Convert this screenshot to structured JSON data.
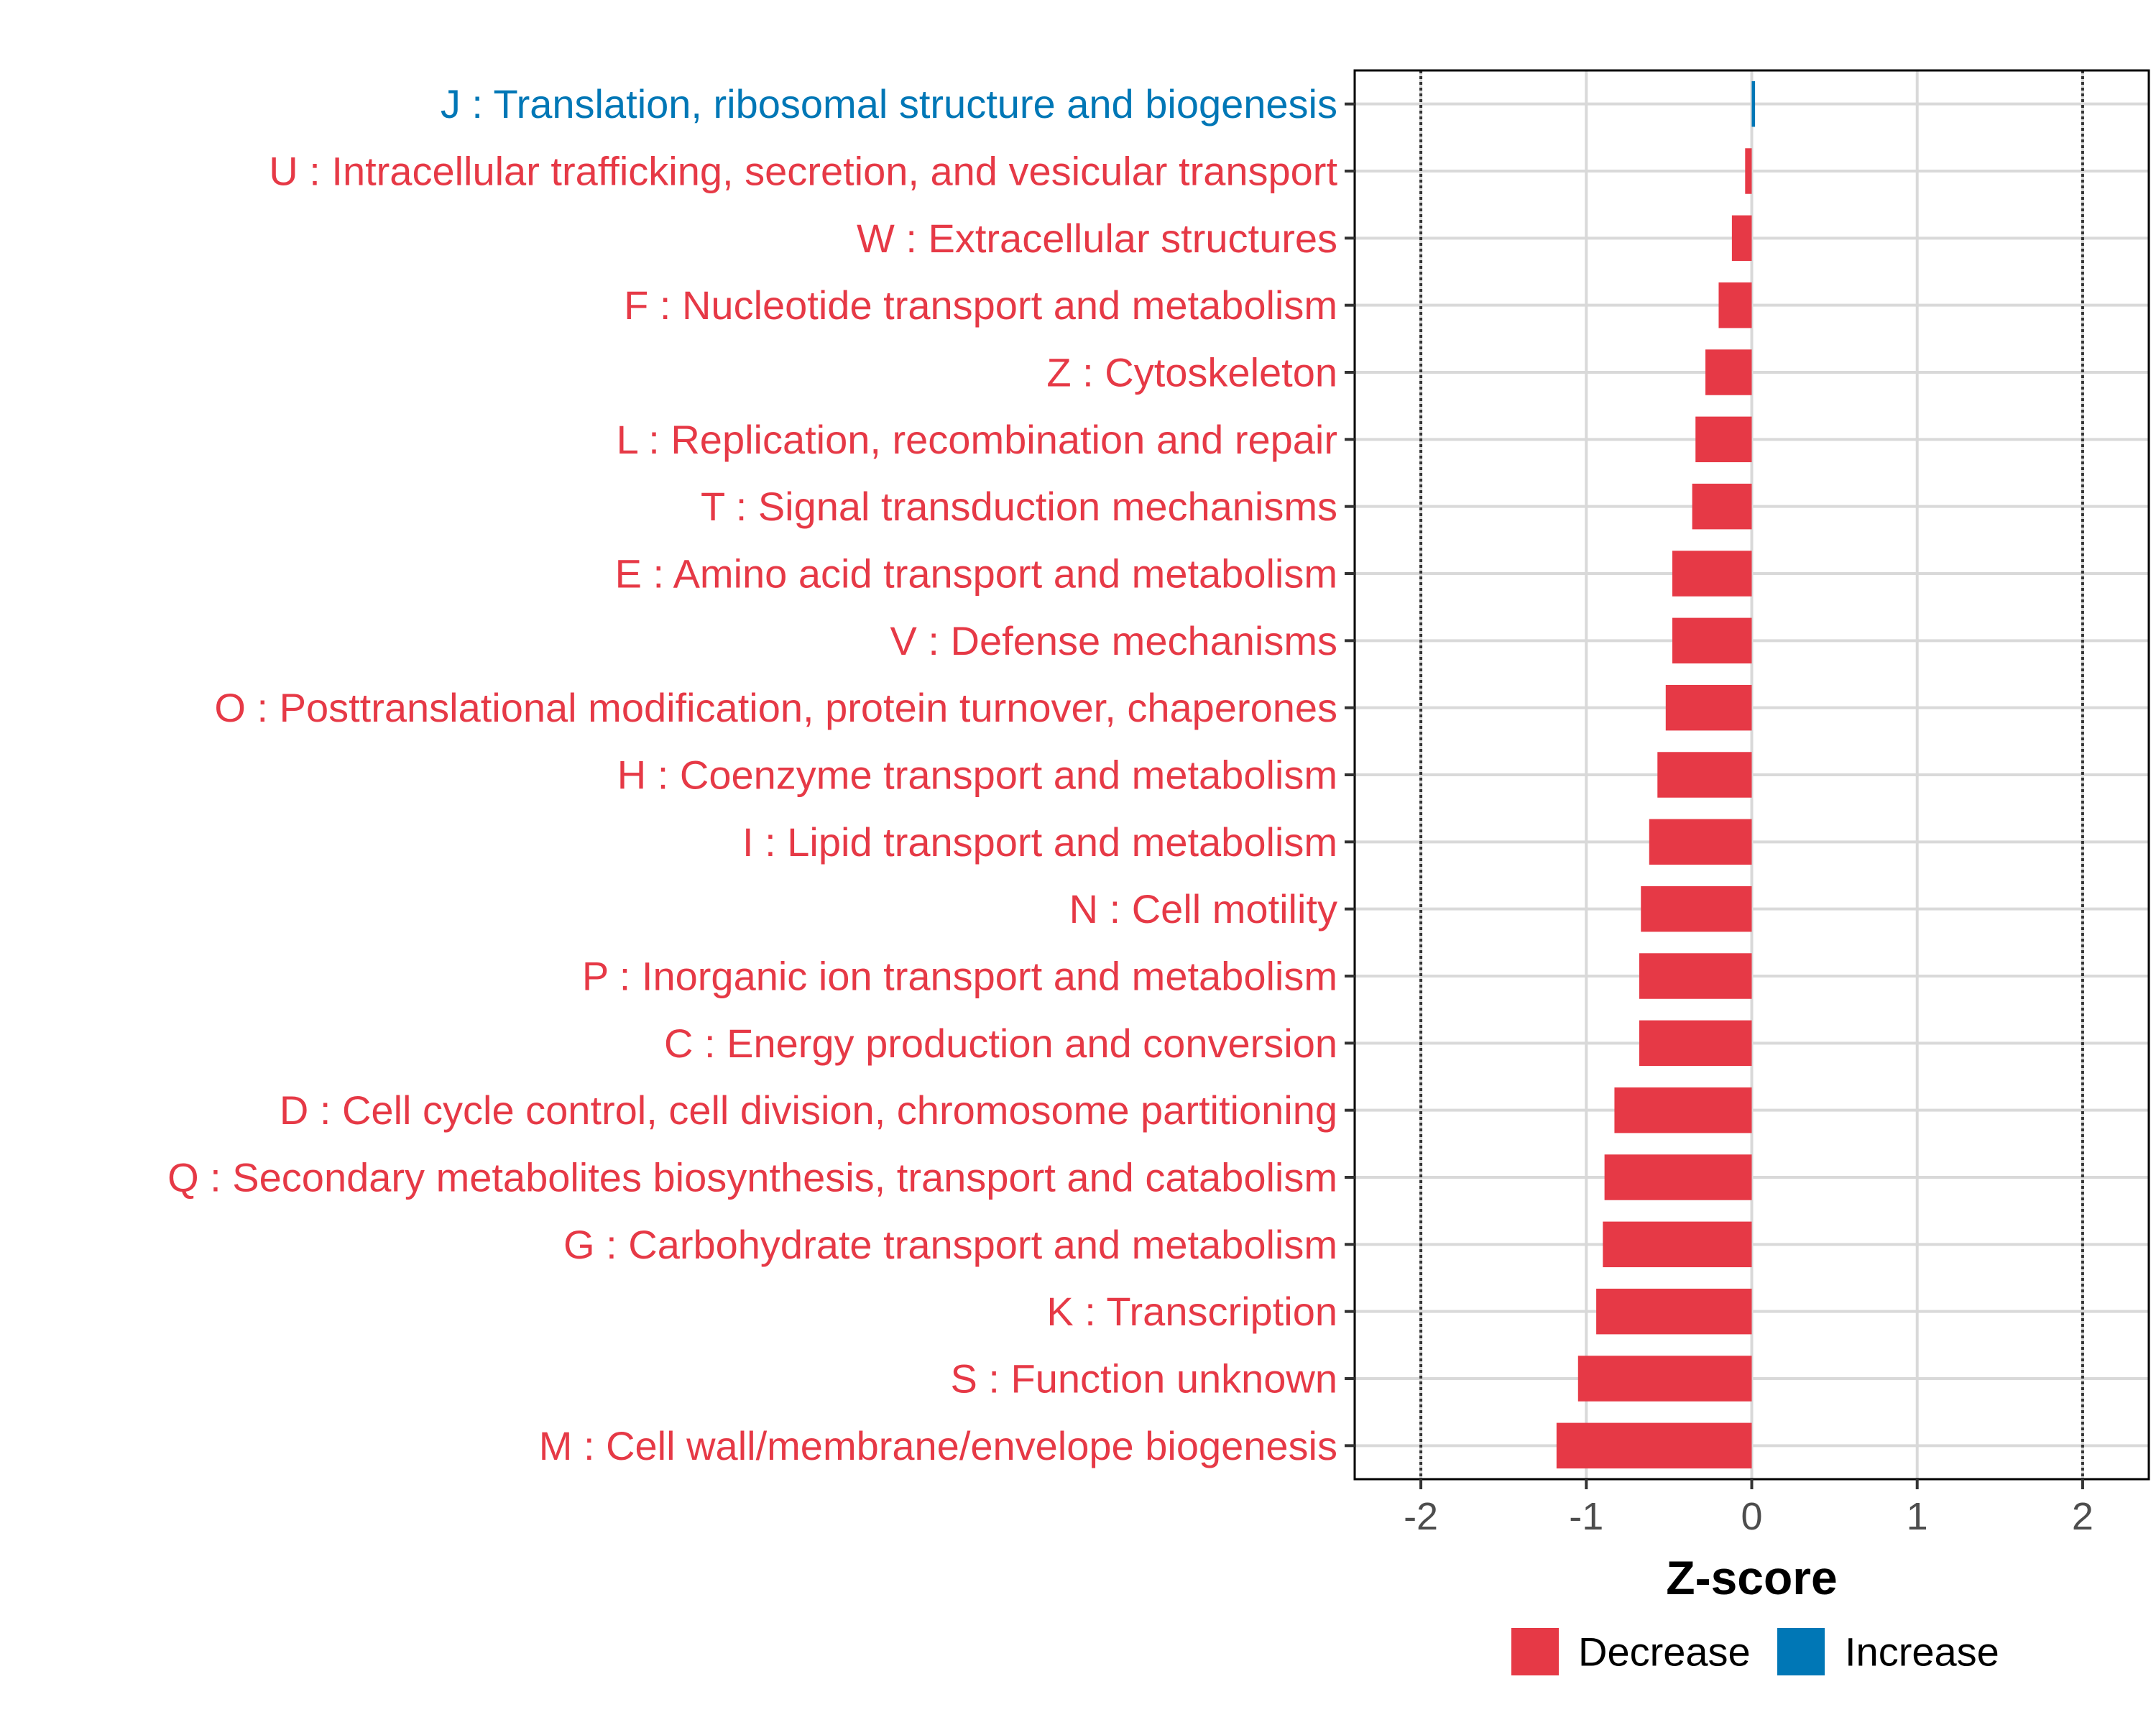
{
  "chart_data": {
    "type": "bar",
    "orientation": "horizontal",
    "title": "",
    "xlabel": "Z-score",
    "ylabel": "",
    "xlim": [
      -2.4,
      2.4
    ],
    "xticks": [
      -2,
      -1,
      0,
      1,
      2
    ],
    "xtick_labels": [
      "-2",
      "-1",
      "0",
      "1",
      "2"
    ],
    "reference_lines": [
      -2,
      2
    ],
    "grid": true,
    "colors": {
      "Decrease": "#e63946",
      "Increase": "#0077b6"
    },
    "legend": {
      "position": "bottom",
      "entries": [
        "Decrease",
        "Increase"
      ]
    },
    "categories": [
      "J : Translation, ribosomal structure and biogenesis",
      "U : Intracellular trafficking, secretion, and vesicular transport",
      "W : Extracellular structures",
      "F : Nucleotide transport and metabolism",
      "Z : Cytoskeleton",
      "L : Replication, recombination and repair",
      "T : Signal transduction mechanisms",
      "E : Amino acid transport and metabolism",
      "V : Defense mechanisms",
      "O : Posttranslational modification, protein turnover, chaperones",
      "H : Coenzyme transport and metabolism",
      "I : Lipid transport and metabolism",
      "N : Cell motility",
      "P : Inorganic ion transport and metabolism",
      "C : Energy production and conversion",
      "D : Cell cycle control, cell division, chromosome partitioning",
      "Q : Secondary metabolites biosynthesis, transport and catabolism",
      "G : Carbohydrate transport and metabolism",
      "K : Transcription",
      "S : Function unknown",
      "M : Cell wall/membrane/envelope biogenesis"
    ],
    "values": [
      0.02,
      -0.04,
      -0.12,
      -0.2,
      -0.28,
      -0.34,
      -0.36,
      -0.48,
      -0.48,
      -0.52,
      -0.57,
      -0.62,
      -0.67,
      -0.68,
      -0.68,
      -0.83,
      -0.89,
      -0.9,
      -0.94,
      -1.05,
      -1.18
    ],
    "groups": [
      "Increase",
      "Decrease",
      "Decrease",
      "Decrease",
      "Decrease",
      "Decrease",
      "Decrease",
      "Decrease",
      "Decrease",
      "Decrease",
      "Decrease",
      "Decrease",
      "Decrease",
      "Decrease",
      "Decrease",
      "Decrease",
      "Decrease",
      "Decrease",
      "Decrease",
      "Decrease",
      "Decrease"
    ]
  }
}
